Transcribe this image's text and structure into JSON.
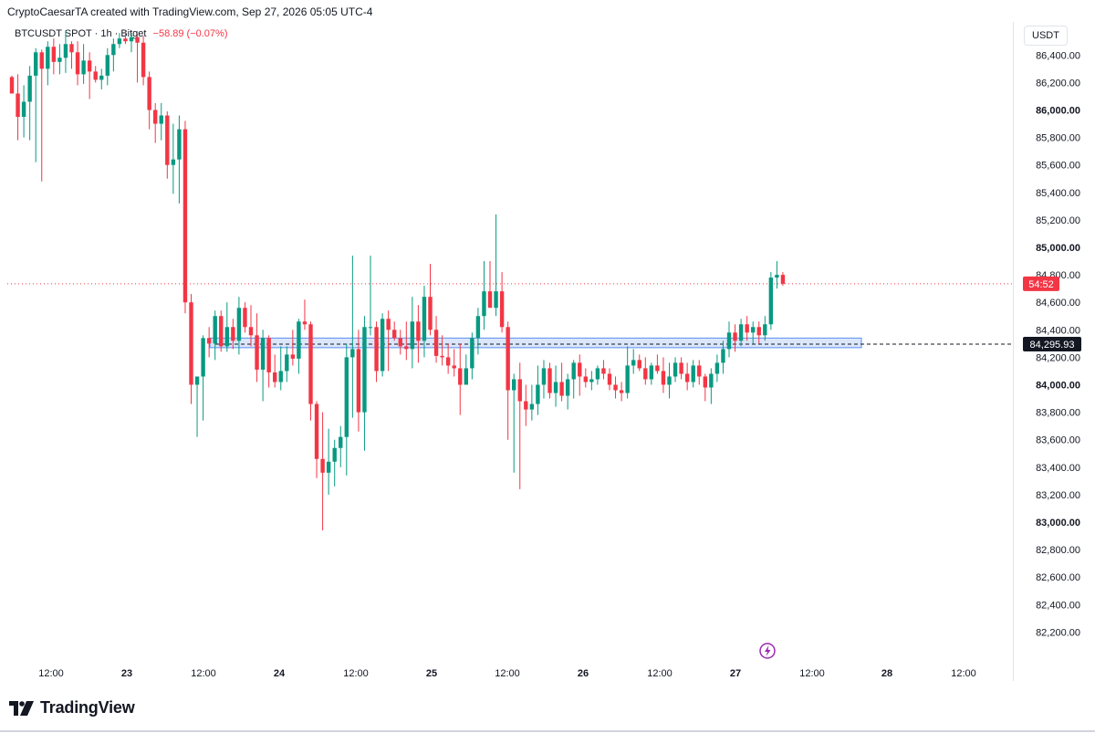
{
  "header": {
    "attribution": "CryptoCaesarTA created with TradingView.com, Sep 27, 2026 05:05 UTC-4"
  },
  "legend": {
    "symbol": "BTCUSDT SPOT · 1h · Bitget",
    "change": "−58.89 (−0.07%)"
  },
  "currency_button": "USDT",
  "brand": {
    "name": "TradingView"
  },
  "colors": {
    "up": "#089981",
    "down": "#f23645",
    "zone_fill": "#dbe6fb",
    "zone_stroke": "#5b8def"
  },
  "chart_data": {
    "type": "candlestick",
    "symbol": "BTCUSDT",
    "interval": "1h",
    "exchange": "Bitget",
    "y_axis": {
      "range": [
        82050,
        86580
      ],
      "ticks": [
        82200,
        82400,
        82600,
        82800,
        83000,
        83200,
        83400,
        83600,
        83800,
        84000,
        84200,
        84400,
        84600,
        84800,
        85000,
        85200,
        85400,
        85600,
        85800,
        86000,
        86200,
        86400
      ],
      "tick_labels": [
        "82,200.00",
        "82,400.00",
        "82,600.00",
        "82,800.00",
        "83,000.00",
        "83,200.00",
        "83,400.00",
        "83,600.00",
        "83,800.00",
        "84,000.00",
        "84,200.00",
        "84,400.00",
        "84,600.00",
        "84,800.00",
        "85,000.00",
        "85,200.00",
        "85,400.00",
        "85,600.00",
        "85,800.00",
        "86,000.00",
        "86,200.00",
        "86,400.00"
      ],
      "bold_ticks": [
        83000,
        84000,
        85000,
        86000
      ]
    },
    "x_axis": {
      "labels": [
        "12:00",
        "23",
        "12:00",
        "24",
        "12:00",
        "25",
        "12:00",
        "26",
        "12:00",
        "27",
        "12:00",
        "28",
        "12:00"
      ]
    },
    "horizontal_line": {
      "price": 84295.93,
      "label": "84,295.93"
    },
    "last_price": {
      "price": 84735,
      "countdown": "54:52"
    },
    "zone": {
      "low": 84270,
      "high": 84340
    },
    "candles": [
      [
        86240,
        86250,
        86120,
        86120
      ],
      [
        86120,
        86260,
        85780,
        85950
      ],
      [
        85950,
        86180,
        85800,
        86060
      ],
      [
        86060,
        86320,
        85780,
        86250
      ],
      [
        86250,
        86450,
        85620,
        86420
      ],
      [
        86420,
        86440,
        85480,
        86300
      ],
      [
        86300,
        86500,
        86180,
        86460
      ],
      [
        86460,
        86520,
        86260,
        86350
      ],
      [
        86350,
        86480,
        86260,
        86380
      ],
      [
        86380,
        86580,
        86270,
        86480
      ],
      [
        86480,
        86500,
        86300,
        86420
      ],
      [
        86420,
        86500,
        86180,
        86260
      ],
      [
        86260,
        86480,
        86190,
        86360
      ],
      [
        86360,
        86420,
        86080,
        86280
      ],
      [
        86280,
        86320,
        86200,
        86220
      ],
      [
        86220,
        86300,
        86150,
        86250
      ],
      [
        86250,
        86450,
        86180,
        86400
      ],
      [
        86400,
        86520,
        86280,
        86480
      ],
      [
        86480,
        86560,
        86450,
        86520
      ],
      [
        86520,
        86580,
        86480,
        86500
      ],
      [
        86500,
        86560,
        86420,
        86530
      ],
      [
        86530,
        86560,
        86200,
        86490
      ],
      [
        86490,
        86540,
        86180,
        86240
      ],
      [
        86240,
        86280,
        85860,
        86000
      ],
      [
        86000,
        86050,
        85760,
        85900
      ],
      [
        85900,
        86050,
        85780,
        85960
      ],
      [
        85960,
        85990,
        85500,
        85600
      ],
      [
        85600,
        85900,
        85390,
        85640
      ],
      [
        85640,
        85960,
        85320,
        85860
      ],
      [
        85860,
        85920,
        84520,
        84600
      ],
      [
        84600,
        84660,
        83860,
        84000
      ],
      [
        84000,
        84020,
        83620,
        84060
      ],
      [
        84060,
        84360,
        83740,
        84340
      ],
      [
        84340,
        84420,
        84200,
        84300
      ],
      [
        84300,
        84540,
        84180,
        84500
      ],
      [
        84500,
        84540,
        84240,
        84280
      ],
      [
        84280,
        84600,
        84240,
        84420
      ],
      [
        84420,
        84480,
        84260,
        84320
      ],
      [
        84320,
        84640,
        84220,
        84560
      ],
      [
        84560,
        84600,
        84380,
        84420
      ],
      [
        84420,
        84580,
        84280,
        84360
      ],
      [
        84360,
        84520,
        84020,
        84110
      ],
      [
        84110,
        84400,
        83880,
        84340
      ],
      [
        84340,
        84360,
        83980,
        84090
      ],
      [
        84090,
        84220,
        83980,
        84020
      ],
      [
        84020,
        84280,
        83960,
        84100
      ],
      [
        84100,
        84280,
        84020,
        84220
      ],
      [
        84220,
        84400,
        84140,
        84190
      ],
      [
        84190,
        84480,
        84080,
        84460
      ],
      [
        84460,
        84620,
        84400,
        84440
      ],
      [
        84440,
        84460,
        83740,
        83860
      ],
      [
        83860,
        83880,
        83320,
        83460
      ],
      [
        83460,
        83800,
        82940,
        83360
      ],
      [
        83360,
        83680,
        83200,
        83440
      ],
      [
        83440,
        83600,
        83260,
        83540
      ],
      [
        83540,
        83700,
        83400,
        83620
      ],
      [
        83620,
        84300,
        83340,
        84200
      ],
      [
        84200,
        84940,
        83760,
        84260
      ],
      [
        84260,
        84400,
        83660,
        83800
      ],
      [
        83800,
        84500,
        83520,
        84420
      ],
      [
        84420,
        84940,
        84360,
        84420
      ],
      [
        84420,
        84460,
        84020,
        84100
      ],
      [
        84100,
        84520,
        84060,
        84480
      ],
      [
        84480,
        84540,
        84100,
        84400
      ],
      [
        84400,
        84460,
        84320,
        84340
      ],
      [
        84340,
        84400,
        84220,
        84280
      ],
      [
        84280,
        84460,
        84180,
        84260
      ],
      [
        84260,
        84640,
        84120,
        84460
      ],
      [
        84460,
        84580,
        84160,
        84320
      ],
      [
        84320,
        84720,
        84200,
        84640
      ],
      [
        84640,
        84880,
        84360,
        84400
      ],
      [
        84400,
        84500,
        84160,
        84210
      ],
      [
        84210,
        84360,
        84140,
        84200
      ],
      [
        84200,
        84300,
        84080,
        84140
      ],
      [
        84140,
        84260,
        84060,
        84120
      ],
      [
        84120,
        84300,
        83780,
        84000
      ],
      [
        84000,
        84220,
        84000,
        84120
      ],
      [
        84120,
        84380,
        84040,
        84340
      ],
      [
        84340,
        84560,
        84220,
        84500
      ],
      [
        84500,
        84900,
        84400,
        84680
      ],
      [
        84680,
        84900,
        84600,
        84560
      ],
      [
        84560,
        85240,
        84500,
        84680
      ],
      [
        84680,
        84820,
        84380,
        84420
      ],
      [
        84420,
        84460,
        83600,
        83960
      ],
      [
        83960,
        84080,
        83360,
        84040
      ],
      [
        84040,
        84160,
        83240,
        83880
      ],
      [
        83880,
        84000,
        83700,
        83820
      ],
      [
        83820,
        84000,
        83740,
        83860
      ],
      [
        83860,
        84140,
        83780,
        84000
      ],
      [
        84000,
        84180,
        83900,
        84120
      ],
      [
        84120,
        84160,
        83900,
        83940
      ],
      [
        83940,
        84140,
        83840,
        84020
      ],
      [
        84020,
        84160,
        83880,
        83920
      ],
      [
        83920,
        84080,
        83820,
        84040
      ],
      [
        84040,
        84180,
        83900,
        84160
      ],
      [
        84160,
        84220,
        83920,
        84060
      ],
      [
        84060,
        84120,
        83980,
        84020
      ],
      [
        84020,
        84100,
        83960,
        84040
      ],
      [
        84040,
        84140,
        84000,
        84120
      ],
      [
        84120,
        84180,
        84040,
        84080
      ],
      [
        84080,
        84120,
        83960,
        84000
      ],
      [
        84000,
        84060,
        83900,
        83960
      ],
      [
        83960,
        84020,
        83880,
        83940
      ],
      [
        83940,
        84280,
        83900,
        84140
      ],
      [
        84140,
        84260,
        84080,
        84180
      ],
      [
        84180,
        84220,
        84100,
        84120
      ],
      [
        84120,
        84200,
        84000,
        84040
      ],
      [
        84040,
        84160,
        84000,
        84140
      ],
      [
        84140,
        84220,
        84080,
        84100
      ],
      [
        84100,
        84200,
        83940,
        84000
      ],
      [
        84000,
        84160,
        83900,
        84060
      ],
      [
        84060,
        84200,
        84020,
        84160
      ],
      [
        84160,
        84200,
        84040,
        84080
      ],
      [
        84080,
        84160,
        83960,
        84020
      ],
      [
        84020,
        84180,
        83980,
        84140
      ],
      [
        84140,
        84180,
        84000,
        84060
      ],
      [
        84060,
        84080,
        83880,
        83980
      ],
      [
        83980,
        84120,
        83860,
        84080
      ],
      [
        84080,
        84220,
        84020,
        84160
      ],
      [
        84160,
        84320,
        84080,
        84260
      ],
      [
        84260,
        84460,
        84200,
        84380
      ],
      [
        84380,
        84440,
        84240,
        84320
      ],
      [
        84320,
        84480,
        84280,
        84440
      ],
      [
        84440,
        84500,
        84320,
        84380
      ],
      [
        84380,
        84460,
        84300,
        84420
      ],
      [
        84420,
        84460,
        84300,
        84360
      ],
      [
        84360,
        84500,
        84320,
        84440
      ],
      [
        84440,
        84820,
        84400,
        84780
      ],
      [
        84780,
        84900,
        84700,
        84800
      ],
      [
        84800,
        84820,
        84720,
        84735
      ]
    ]
  }
}
